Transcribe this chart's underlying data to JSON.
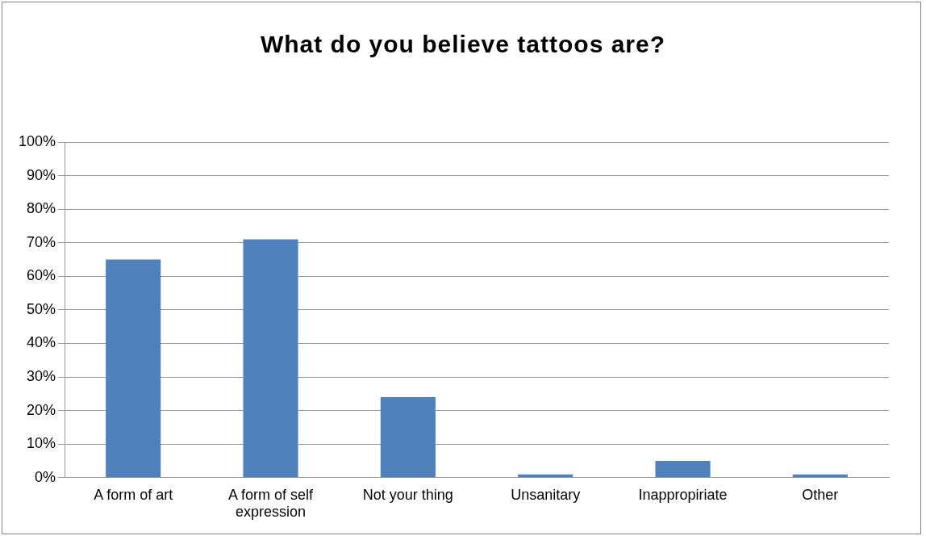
{
  "chart_data": {
    "type": "bar",
    "title": "What do you believe tattoos are?",
    "categories": [
      "A form of art",
      "A form of self expression",
      "Not your thing",
      "Unsanitary",
      "Inappropiriate",
      "Other"
    ],
    "values": [
      65,
      71,
      24,
      1,
      5,
      1
    ],
    "color": "#4f81bd",
    "ylim": [
      0,
      100
    ],
    "yticks": [
      {
        "value": 0,
        "label": "0%"
      },
      {
        "value": 10,
        "label": "10%"
      },
      {
        "value": 20,
        "label": "20%"
      },
      {
        "value": 30,
        "label": "30%"
      },
      {
        "value": 40,
        "label": "40%"
      },
      {
        "value": 50,
        "label": "50%"
      },
      {
        "value": 60,
        "label": "60%"
      },
      {
        "value": 70,
        "label": "70%"
      },
      {
        "value": 80,
        "label": "80%"
      },
      {
        "value": 90,
        "label": "90%"
      },
      {
        "value": 100,
        "label": "100%"
      }
    ],
    "grid": "y",
    "legend": false
  }
}
